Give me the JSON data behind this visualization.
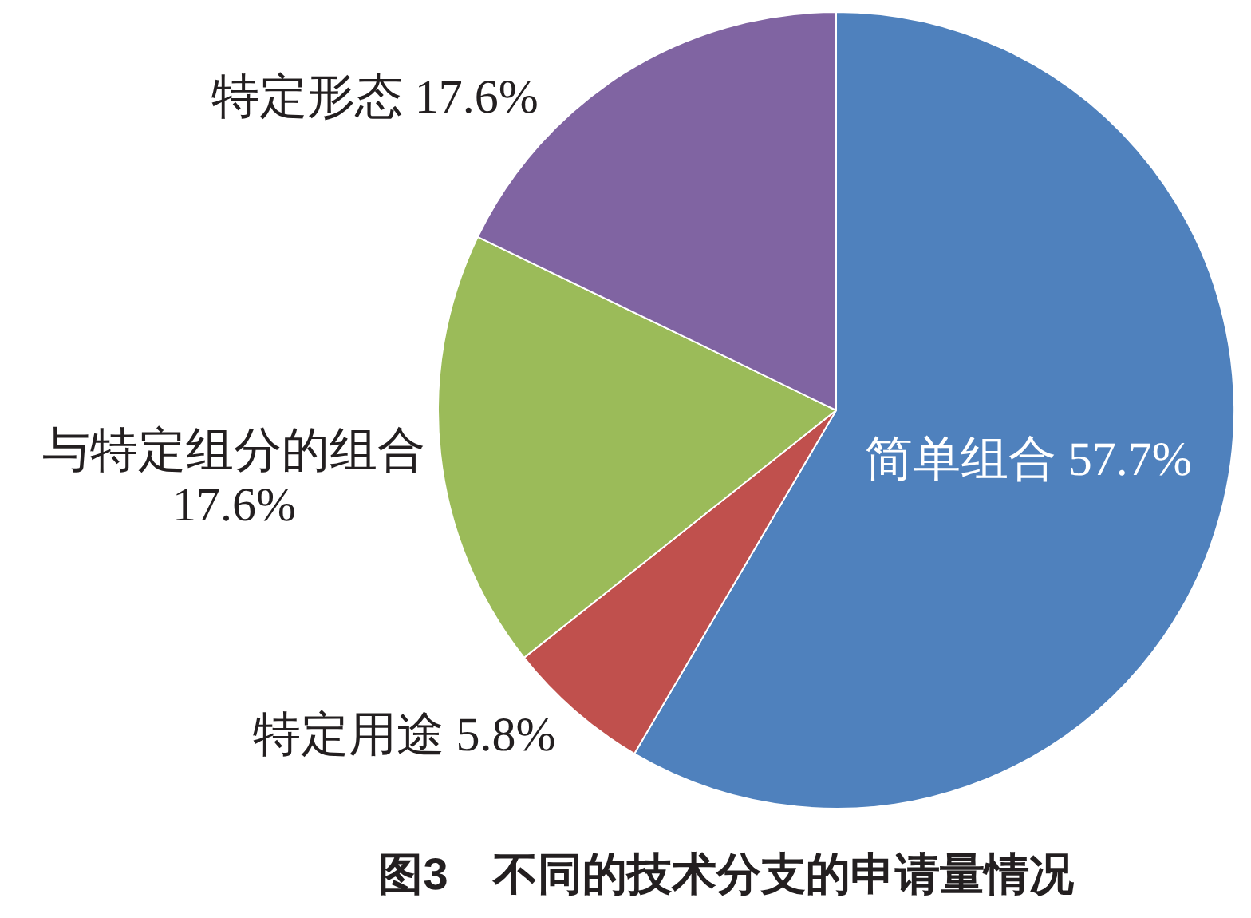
{
  "chart_data": {
    "type": "pie",
    "title": "图3　不同的技术分支的申请量情况",
    "categories": [
      "简单组合",
      "特定用途",
      "与特定组分的组合",
      "特定形态"
    ],
    "values": [
      57.7,
      5.8,
      17.6,
      17.6
    ],
    "colors": [
      "#4f81bd",
      "#c0504d",
      "#9bbb59",
      "#8064a2"
    ],
    "value_labels": [
      "57.7%",
      "5.8%",
      "17.6%",
      "17.6%"
    ],
    "legend": false
  }
}
